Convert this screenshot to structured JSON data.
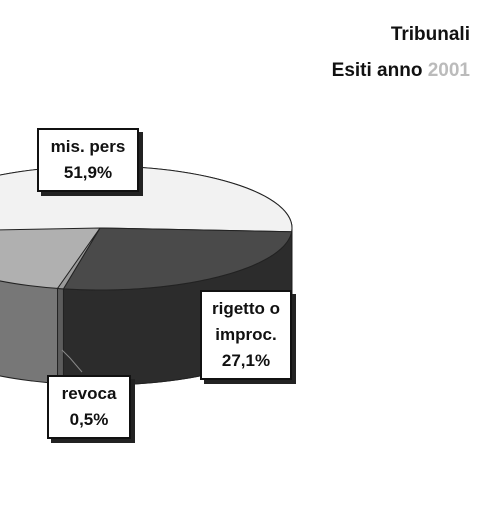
{
  "chart_data": {
    "type": "pie",
    "title": "Tribunali",
    "subtitle": "Esiti anno",
    "subtitle_year": "2001",
    "categories": [
      "mis. pers",
      "rigetto o improc.",
      "revoca"
    ],
    "values": [
      51.9,
      27.1,
      0.5
    ],
    "value_labels": [
      "51,9%",
      "27,1%",
      "0,5%"
    ],
    "colors": [
      "#f2f2f2",
      "#4a4a4a",
      "#9a9a9a"
    ]
  }
}
